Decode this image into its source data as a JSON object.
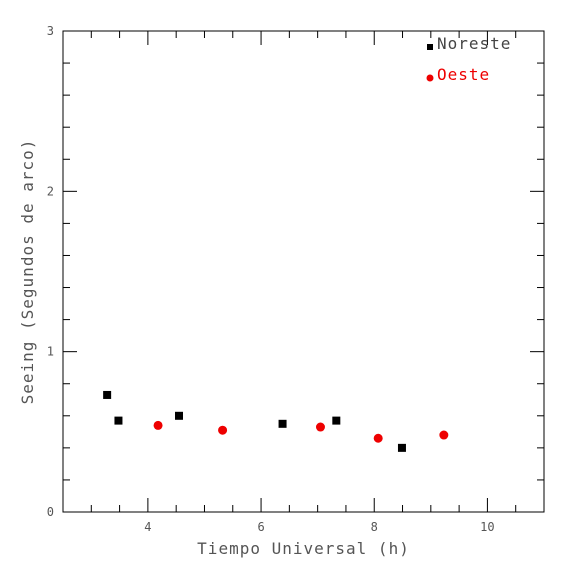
{
  "chart_data": {
    "type": "scatter",
    "xlabel": "Tiempo Universal (h)",
    "ylabel": "Seeing (Segundos de arco)",
    "xlim": [
      2.5,
      11
    ],
    "ylim": [
      0,
      3
    ],
    "x_ticks": [
      4,
      6,
      8,
      10
    ],
    "y_ticks": [
      0,
      1,
      2,
      3
    ],
    "x_tick_labels": [
      "4",
      "6",
      "8",
      "10"
    ],
    "y_tick_labels": [
      "0",
      "1",
      "2",
      "3"
    ],
    "grid": false,
    "legend_placement": "top-right",
    "series": [
      {
        "name": "Noreste",
        "marker": "square",
        "color": "#000000",
        "x": [
          3.28,
          3.48,
          4.55,
          6.38,
          7.33,
          8.49
        ],
        "y": [
          0.73,
          0.57,
          0.6,
          0.55,
          0.57,
          0.4
        ]
      },
      {
        "name": "Oeste",
        "marker": "circle",
        "color": "#ee0000",
        "x": [
          4.18,
          5.32,
          7.05,
          8.07,
          9.23
        ],
        "y": [
          0.54,
          0.51,
          0.53,
          0.46,
          0.48
        ]
      }
    ]
  }
}
